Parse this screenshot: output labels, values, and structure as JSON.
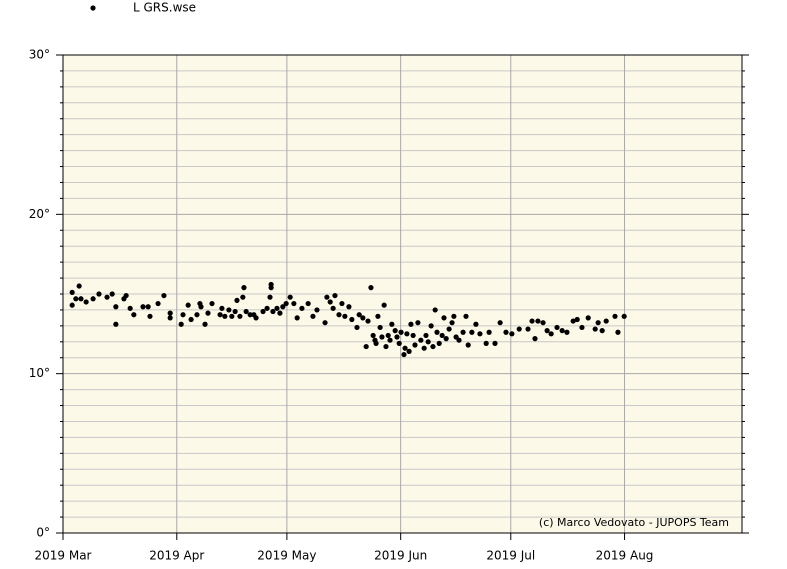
{
  "chart_data": {
    "type": "scatter",
    "series": [
      {
        "name": "L GRS.wse",
        "color": "#000000",
        "x": [
          2.5,
          2.5,
          3.5,
          4.4,
          4.9,
          6.3,
          8.2,
          9.8,
          12,
          13.4,
          14.4,
          14.4,
          16.6,
          17.2,
          18.3,
          19.3,
          21.8,
          23.2,
          23.7,
          25.9,
          27.5,
          29.2,
          29.2,
          32.2,
          32.7,
          34.1,
          34.9,
          36.5,
          37.3,
          37.6,
          38.7,
          39.5,
          40.6,
          42.8,
          43.3,
          44.1,
          45.2,
          46.0,
          46.9,
          47.4,
          48.2,
          49.0,
          49.3,
          49.9,
          51,
          52,
          52.6,
          54.5,
          55.6,
          56.4,
          56.7,
          56.7,
          57.2,
          58.3,
          59.1,
          59.9,
          60.8,
          61.9,
          62.9,
          63.8,
          65.1,
          66.8,
          68.1,
          69.2,
          71.4,
          71.9,
          72.8,
          73.6,
          74.1,
          75.2,
          76,
          76.8,
          77.9,
          78.7,
          80.1,
          80.7,
          81.7,
          82.6,
          83.1,
          83.9,
          84.5,
          85,
          85.3,
          85.8,
          86.4,
          86.9,
          87.5,
          88,
          88.6,
          89.1,
          89.6,
          90.5,
          91,
          91.6,
          92.1,
          92.9,
          93.2,
          93.7,
          94.3,
          94.8,
          95.4,
          95.9,
          96.7,
          97.5,
          98.4,
          98.9,
          99.5,
          100.3,
          100.8,
          101.4,
          101.9,
          102.5,
          103.3,
          103.8,
          104.4,
          105.2,
          106,
          106.5,
          107.1,
          107.9,
          109,
          109.8,
          110.4,
          111.4,
          112.5,
          113.6,
          115.3,
          116.1,
          117.7,
          119.1,
          120.7,
          122.3,
          124.3,
          126.7,
          127.8,
          128.6,
          129.4,
          130.8,
          131.9,
          133,
          134.6,
          136,
          137.3,
          139,
          140.1,
          141.4,
          143.1,
          145,
          145.8,
          146.9,
          148,
          150.4,
          151.2,
          152.9
        ],
        "values": [
          15.1,
          14.3,
          14.7,
          15.5,
          14.7,
          14.5,
          14.7,
          15.0,
          14.8,
          15.0,
          13.1,
          14.2,
          14.7,
          14.9,
          14.1,
          13.7,
          14.2,
          14.2,
          13.6,
          14.4,
          14.9,
          13.8,
          13.5,
          13.1,
          13.7,
          14.3,
          13.4,
          13.7,
          14.4,
          14.2,
          13.1,
          13.8,
          14.4,
          13.7,
          14.1,
          13.6,
          14.0,
          13.6,
          13.9,
          14.6,
          13.6,
          14.8,
          15.4,
          13.9,
          13.7,
          13.7,
          13.5,
          13.9,
          14.1,
          14.8,
          15.6,
          15.4,
          13.9,
          14.1,
          13.8,
          14.2,
          14.4,
          14.8,
          14.4,
          13.5,
          14.1,
          14.4,
          13.6,
          14.0,
          13.2,
          14.8,
          14.5,
          14.1,
          14.9,
          13.7,
          14.4,
          13.6,
          14.2,
          13.4,
          12.9,
          13.7,
          13.5,
          11.7,
          13.3,
          15.4,
          12.4,
          12.1,
          11.9,
          13.6,
          12.9,
          12.3,
          14.3,
          11.7,
          12.4,
          12.1,
          13.1,
          12.7,
          12.3,
          11.9,
          12.6,
          11.2,
          11.6,
          12.5,
          11.4,
          13.1,
          12.4,
          11.8,
          13.2,
          12.1,
          11.6,
          12.4,
          12.0,
          13,
          11.7,
          14,
          12.6,
          11.9,
          12.4,
          13.5,
          12.2,
          12.8,
          13.2,
          13.6,
          12.3,
          12.1,
          12.6,
          13.6,
          11.8,
          12.6,
          13.1,
          12.5,
          11.9,
          12.6,
          11.9,
          13.2,
          12.6,
          12.5,
          12.8,
          12.8,
          13.3,
          12.2,
          13.3,
          13.2,
          12.7,
          12.5,
          12.9,
          12.7,
          12.6,
          13.3,
          13.4,
          12.9,
          13.5,
          12.8,
          13.2,
          12.7,
          13.3,
          13.6,
          12.6,
          13.6
        ]
      }
    ],
    "xlim": [
      0,
      185
    ],
    "xticks": [
      {
        "value": 0,
        "label": "2019 Mar"
      },
      {
        "value": 31,
        "label": "2019 Apr"
      },
      {
        "value": 61,
        "label": "2019 May"
      },
      {
        "value": 92,
        "label": "2019 Jun"
      },
      {
        "value": 122,
        "label": "2019 Jul"
      },
      {
        "value": 153,
        "label": "2019 Aug"
      }
    ],
    "ylim": [
      0,
      30
    ],
    "yticks": [
      {
        "value": 0,
        "label": "0°"
      },
      {
        "value": 10,
        "label": "10°"
      },
      {
        "value": 20,
        "label": "20°"
      },
      {
        "value": 30,
        "label": "30°"
      }
    ],
    "yminor_ticks": [
      1,
      2,
      3,
      4,
      5,
      6,
      7,
      8,
      9,
      11,
      12,
      13,
      14,
      15,
      16,
      17,
      18,
      19,
      21,
      22,
      23,
      24,
      25,
      26,
      27,
      28,
      29
    ],
    "grid": true,
    "annotation": "(c) Marco Vedovato - JUPOPS Team"
  }
}
